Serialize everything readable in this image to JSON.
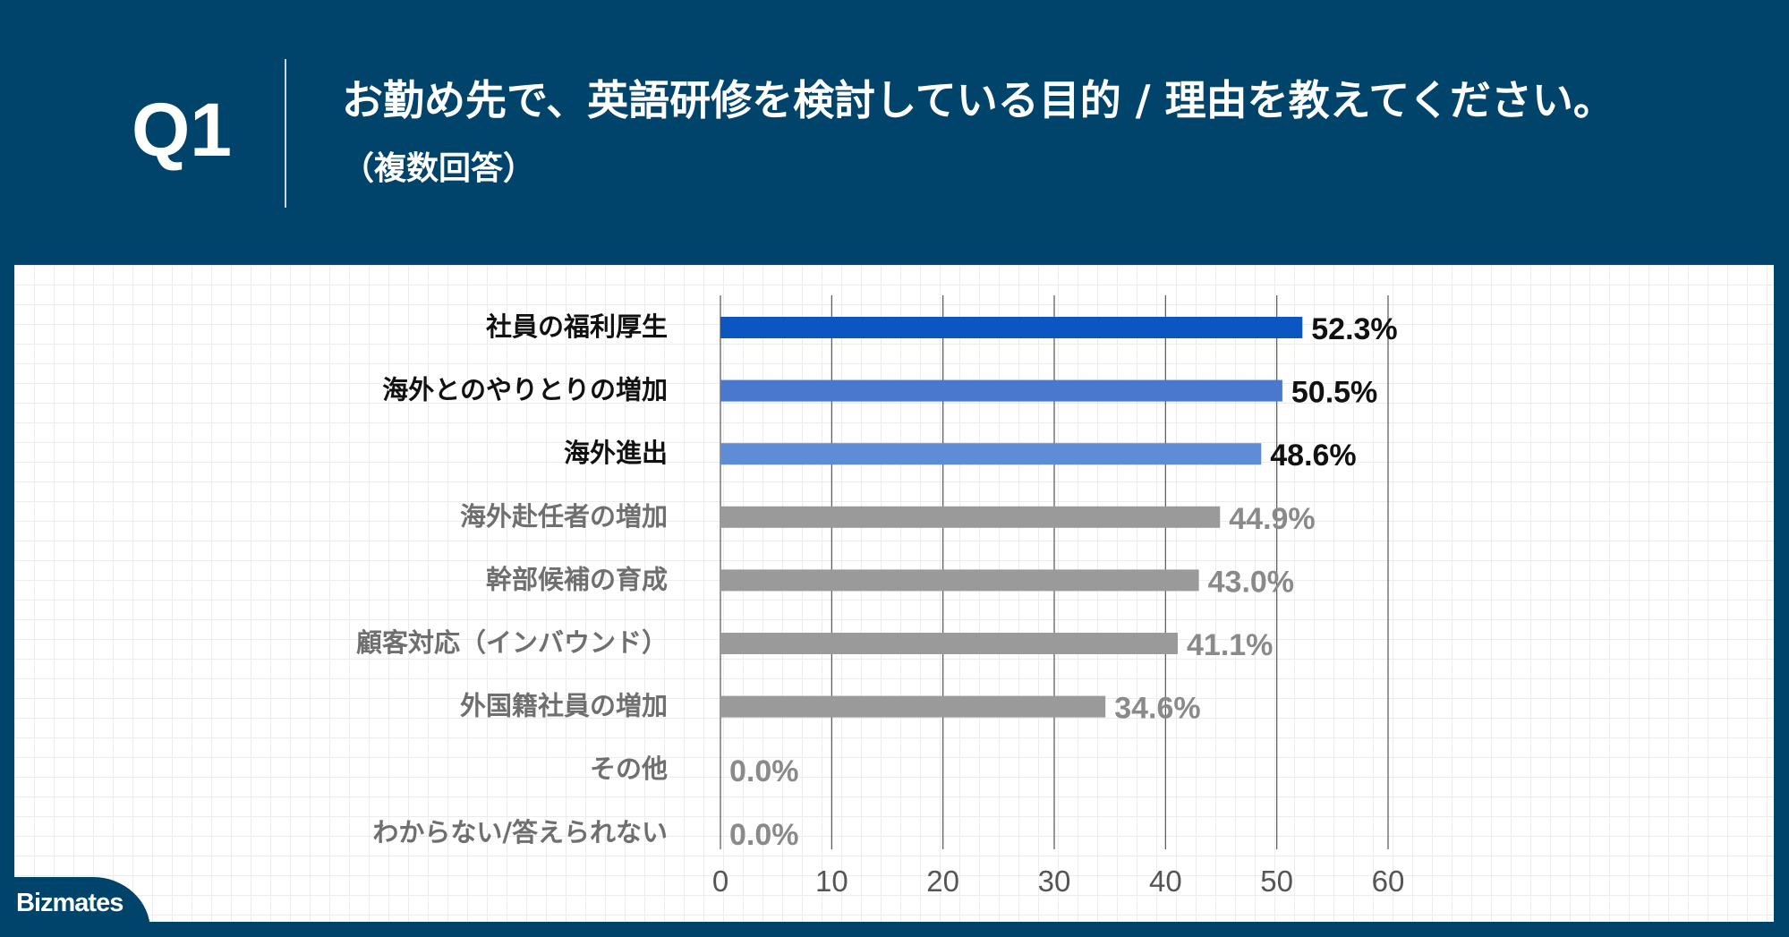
{
  "header": {
    "q_label": "Q1",
    "title": "お勤め先で、英語研修を検討している目的 / 理由を教えてください。",
    "note": "（複数回答）"
  },
  "brand": {
    "logo_text": "Bizmates"
  },
  "colors": {
    "header_bg": "#01446b",
    "highlight_bars": [
      "#0b56c1",
      "#4a78cf",
      "#5f8cd6"
    ],
    "other_bar": "#9a9a9a",
    "highlight_text": "#111111",
    "other_text": "#8a8a8a"
  },
  "chart_data": {
    "type": "bar",
    "orientation": "horizontal",
    "categories": [
      "社員の福利厚生",
      "海外とのやりとりの増加",
      "海外進出",
      "海外赴任者の増加",
      "幹部候補の育成",
      "顧客対応（インバウンド）",
      "外国籍社員の増加",
      "その他",
      "わからない/答えられない"
    ],
    "values": [
      52.3,
      50.5,
      48.6,
      44.9,
      43.0,
      41.1,
      34.6,
      0.0,
      0.0
    ],
    "value_labels": [
      "52.3%",
      "50.5%",
      "48.6%",
      "44.9%",
      "43.0%",
      "41.1%",
      "34.6%",
      "0.0%",
      "0.0%"
    ],
    "highlighted_count": 3,
    "xlim": [
      0,
      60
    ],
    "xticks": [
      "0",
      "10",
      "20",
      "30",
      "40",
      "50",
      "60"
    ],
    "title": "",
    "xlabel": "",
    "ylabel": "",
    "grid": true
  }
}
